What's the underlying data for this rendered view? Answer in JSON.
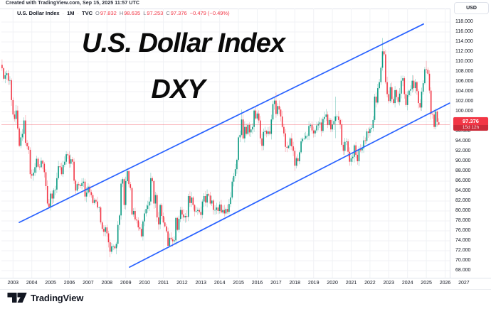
{
  "attribution": "Created with TradingView.com, Sep 15, 2025 11:57 UTC",
  "watermark": {
    "line1": "U.S. Dollar Index",
    "line2": "DXY"
  },
  "legend": {
    "title": "U.S. Dollar Index",
    "interval": "1M",
    "exchange": "TVC",
    "sep": "·",
    "o_label": "O",
    "o": "97.832",
    "h_label": "H",
    "h": "98.635",
    "l_label": "L",
    "l": "97.253",
    "c_label": "C",
    "c": "97.376",
    "change": "−0.479 (−0.49%)"
  },
  "price_axis": {
    "currency_button": "USD",
    "last_price": "97.376",
    "countdown": "15d 12h"
  },
  "time_axis": {
    "years": [
      2003,
      2004,
      2005,
      2006,
      2007,
      2008,
      2009,
      2010,
      2011,
      2012,
      2013,
      2014,
      2015,
      2016,
      2017,
      2018,
      2019,
      2020,
      2021,
      2022,
      2023,
      2024,
      2025,
      2026,
      2027
    ]
  },
  "footer": {
    "brand": "TradingView"
  },
  "colors": {
    "up": "#089981",
    "down": "#f23645",
    "trendline": "#2962ff",
    "price_line": "#f23645",
    "grid": "#f0f2f5",
    "border": "#e0e3eb",
    "text": "#131722",
    "muted": "#787b86",
    "badge_bg": "#f23645",
    "countdown_bg": "#cc2b39"
  },
  "chart_data": {
    "type": "candlestick",
    "title": "U.S. Dollar Index",
    "symbol": "DXY",
    "interval": "1M",
    "exchange": "TVC",
    "unit": "USD",
    "ylim": [
      68,
      118
    ],
    "y_step": 2,
    "grid": true,
    "start_month": "2002-06",
    "end_month": "2025-09",
    "first_open": 109.4,
    "price_line": 97.376,
    "closes_by_year": {
      "2002": [
        108.7,
        106.6,
        107.3,
        107.7,
        106.2,
        106.3,
        102.3
      ],
      "2003": [
        99.4,
        98.5,
        100.2,
        96.6,
        93.1,
        94.8,
        95.5,
        98.2,
        93.7,
        93.0,
        92.3,
        87.4
      ],
      "2004": [
        87.1,
        87.7,
        88.8,
        90.5,
        88.9,
        88.8,
        90.1,
        89.5,
        87.8,
        85.0,
        81.5,
        80.8
      ],
      "2005": [
        83.5,
        82.5,
        84.2,
        84.3,
        86.6,
        89.0,
        88.8,
        87.4,
        89.3,
        89.9,
        91.4,
        91.2
      ],
      "2006": [
        89.5,
        90.4,
        89.9,
        86.1,
        84.1,
        85.4,
        85.2,
        85.0,
        85.6,
        85.9,
        82.9,
        83.7
      ],
      "2007": [
        84.9,
        83.8,
        83.2,
        81.6,
        82.2,
        81.9,
        80.7,
        80.7,
        77.7,
        76.4,
        75.8,
        76.7
      ],
      "2008": [
        75.5,
        73.7,
        71.8,
        72.9,
        72.9,
        72.5,
        73.4,
        77.2,
        79.1,
        85.5,
        86.4,
        81.2
      ],
      "2009": [
        86.0,
        88.0,
        85.4,
        84.6,
        79.3,
        80.0,
        78.3,
        78.1,
        76.7,
        76.4,
        74.9,
        77.9
      ],
      "2010": [
        79.5,
        80.4,
        81.1,
        81.9,
        86.6,
        86.0,
        81.5,
        83.2,
        78.7,
        77.3,
        81.2,
        79.0
      ],
      "2011": [
        77.7,
        76.9,
        75.9,
        73.0,
        74.6,
        74.3,
        73.9,
        74.1,
        78.6,
        76.2,
        78.4,
        80.2
      ],
      "2012": [
        79.3,
        78.7,
        79.0,
        78.8,
        83.0,
        81.6,
        82.7,
        81.2,
        79.9,
        80.0,
        80.2,
        79.8
      ],
      "2013": [
        79.2,
        81.9,
        83.0,
        81.7,
        83.4,
        83.1,
        81.5,
        82.1,
        80.2,
        80.2,
        80.7,
        80.0
      ],
      "2014": [
        81.3,
        79.7,
        80.2,
        79.5,
        80.4,
        79.8,
        81.4,
        82.7,
        85.9,
        87.0,
        88.4,
        90.3
      ],
      "2015": [
        94.8,
        95.3,
        98.4,
        94.6,
        96.9,
        95.5,
        97.3,
        95.8,
        96.4,
        96.9,
        100.2,
        98.6
      ],
      "2016": [
        99.6,
        98.2,
        94.6,
        93.1,
        95.9,
        96.1,
        95.5,
        96.0,
        95.5,
        98.4,
        101.5,
        102.2
      ],
      "2017": [
        99.5,
        101.1,
        100.4,
        99.0,
        96.9,
        95.6,
        92.9,
        92.7,
        93.1,
        94.6,
        93.0,
        92.1
      ],
      "2018": [
        89.1,
        90.6,
        90.0,
        91.8,
        94.0,
        94.5,
        94.6,
        95.1,
        95.1,
        97.1,
        97.3,
        96.2
      ],
      "2019": [
        95.6,
        96.2,
        97.2,
        97.5,
        97.8,
        96.1,
        98.5,
        98.9,
        99.4,
        97.3,
        98.3,
        96.4
      ],
      "2020": [
        97.4,
        98.1,
        99.0,
        99.0,
        98.3,
        97.4,
        93.3,
        92.1,
        93.9,
        94.0,
        91.9,
        89.9
      ],
      "2021": [
        90.6,
        90.9,
        93.2,
        91.3,
        90.0,
        92.4,
        92.2,
        92.6,
        94.2,
        94.1,
        96.0,
        95.7
      ],
      "2022": [
        96.5,
        96.7,
        98.3,
        103.0,
        101.8,
        104.7,
        105.9,
        108.8,
        112.1,
        111.5,
        105.9,
        103.5
      ],
      "2023": [
        102.1,
        104.9,
        102.5,
        101.7,
        104.3,
        102.9,
        101.9,
        103.6,
        106.2,
        106.7,
        103.5,
        101.3
      ],
      "2024": [
        103.3,
        104.2,
        104.5,
        106.2,
        104.7,
        105.9,
        104.1,
        101.7,
        100.8,
        104.0,
        105.7,
        108.5
      ],
      "2025": [
        108.4,
        107.6,
        104.2,
        99.5,
        99.4,
        96.9,
        100.0,
        97.9,
        97.376
      ]
    },
    "wick_overrides": {
      "2008-03": {
        "l": 70.7
      },
      "2008-07": {
        "l": 71.31
      },
      "2011-05": {
        "l": 72.7
      },
      "2015-03": {
        "h": 100.39
      },
      "2017-01": {
        "h": 103.82
      },
      "2020-03": {
        "h": 102.99,
        "l": 94.65
      },
      "2022-09": {
        "h": 114.78
      },
      "2025-01": {
        "h": 110.18
      },
      "2025-09": {
        "o": 97.832,
        "h": 98.635,
        "l": 97.253,
        "c": 97.376
      }
    },
    "trendlines": [
      {
        "name": "channel-upper",
        "t1": 2003.33,
        "p1": 77.7,
        "t2": 2024.85,
        "p2": 117.6
      },
      {
        "name": "channel-lower",
        "t1": 2009.2,
        "p1": 68.7,
        "t2": 2026.24,
        "p2": 101.7
      }
    ]
  }
}
